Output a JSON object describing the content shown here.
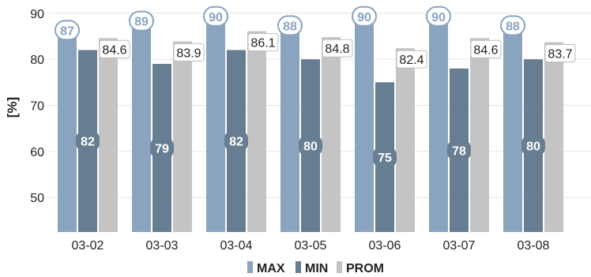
{
  "chart_data": {
    "type": "bar",
    "ylabel": "[%]",
    "ylim": [
      42.5,
      91.5
    ],
    "yticks": [
      50,
      60,
      70,
      80,
      90
    ],
    "grid": true,
    "legend_position": "bottom",
    "categories": [
      "03-02",
      "03-03",
      "03-04",
      "03-05",
      "03-06",
      "03-07",
      "03-08"
    ],
    "series": [
      {
        "name": "MAX",
        "color": "#8aa3bf",
        "label_text_color": "#8aa3bf",
        "label_fill": "#ffffff",
        "label_style": "rounded-white",
        "values": [
          87,
          89,
          90,
          88,
          90,
          90,
          88
        ]
      },
      {
        "name": "MIN",
        "color": "#677e92",
        "label_text_color": "#ffffff",
        "label_fill": "#677e92",
        "label_style": "rounded-dark",
        "values": [
          82,
          79,
          82,
          80,
          75,
          78,
          80
        ]
      },
      {
        "name": "PROM",
        "color": "#c4c4c4",
        "label_text_color": "#222222",
        "label_fill": "#ffffff",
        "label_style": "box",
        "values": [
          84.6,
          83.9,
          86.1,
          84.8,
          82.4,
          84.6,
          83.7
        ]
      }
    ]
  }
}
